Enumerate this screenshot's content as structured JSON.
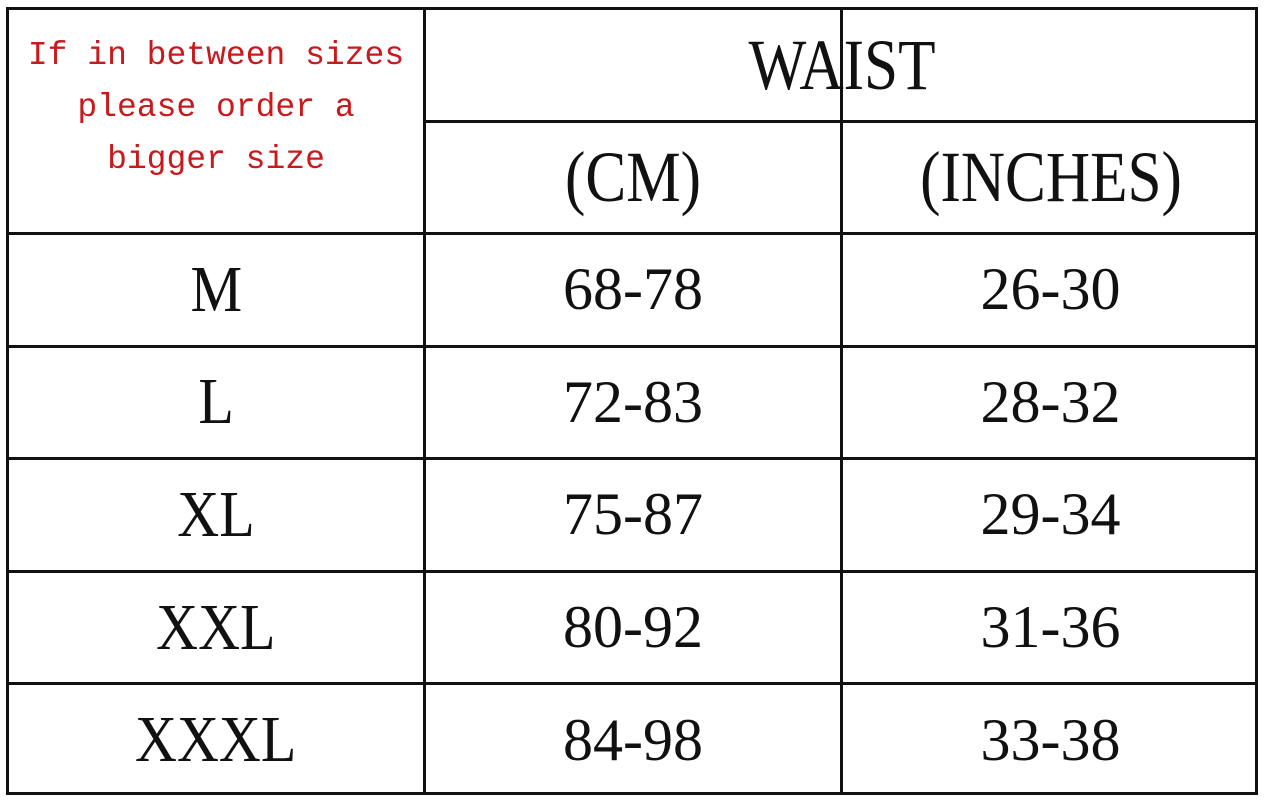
{
  "note": [
    "If in between sizes",
    "please order a",
    "bigger size"
  ],
  "header": {
    "group": "WAIST",
    "cm": "(CM)",
    "inches": "(INCHES)"
  },
  "rows": [
    {
      "size": "M",
      "cm": "68-78",
      "inches": "26-30"
    },
    {
      "size": "L",
      "cm": "72-83",
      "inches": "28-32"
    },
    {
      "size": "XL",
      "cm": "75-87",
      "inches": "29-34"
    },
    {
      "size": "XXL",
      "cm": "80-92",
      "inches": "31-36"
    },
    {
      "size": "XXXL",
      "cm": "84-98",
      "inches": "33-38"
    }
  ],
  "colors": {
    "note": "#c8191c",
    "text": "#111111"
  }
}
